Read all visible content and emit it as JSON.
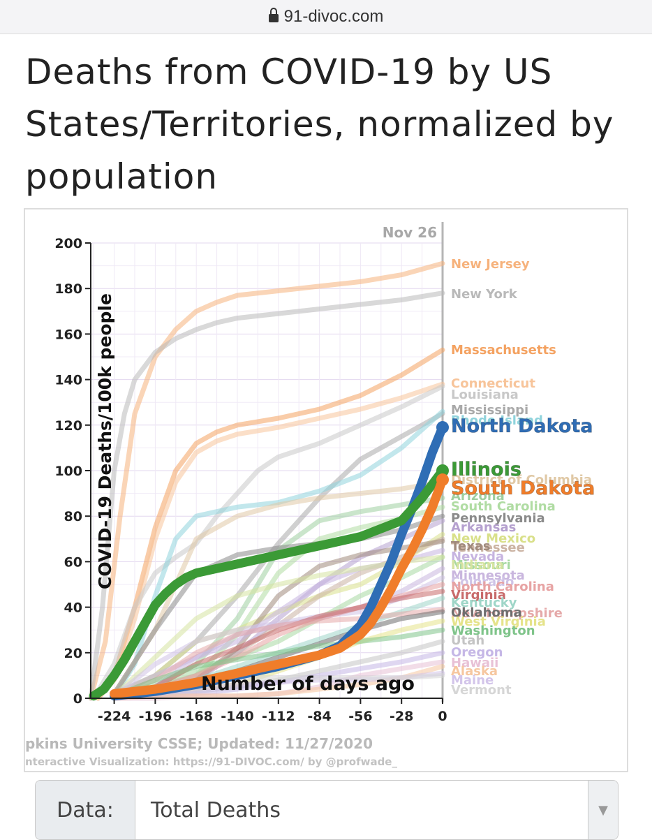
{
  "browser": {
    "url": "91-divoc.com"
  },
  "page": {
    "title": "Deaths from COVID-19 by US States/Territories, normalized by population"
  },
  "controls": {
    "data_label": "Data:",
    "data_value": "Total Deaths"
  },
  "chart_data": {
    "type": "line",
    "title": "",
    "xlabel": "Number of days ago",
    "ylabel": "COVID-19 Deaths/100k people",
    "xlim": [
      -240,
      0
    ],
    "ylim": [
      0,
      200
    ],
    "x_ticks": [
      -224,
      -196,
      -168,
      -140,
      -112,
      -84,
      -56,
      -28,
      0
    ],
    "y_ticks": [
      0,
      20,
      40,
      60,
      80,
      100,
      120,
      140,
      160,
      180,
      200
    ],
    "grid": true,
    "date_marker": "Nov 26",
    "source_line": "pkins University CSSE; Updated: 11/27/2020",
    "credit_line": "nteractive Visualization: https://91-DIVOC.com/ by @profwade_",
    "highlighted": [
      {
        "name": "North Dakota",
        "color": "#2f6db5",
        "x": [
          -224,
          -196,
          -168,
          -140,
          -112,
          -84,
          -70,
          -56,
          -49,
          -42,
          -35,
          -28,
          -21,
          -14,
          -7,
          0
        ],
        "y": [
          1,
          3,
          6,
          10,
          14,
          19,
          23,
          32,
          40,
          50,
          60,
          72,
          83,
          95,
          108,
          119
        ]
      },
      {
        "name": "Illinois",
        "color": "#3b9a36",
        "x": [
          -238,
          -231,
          -224,
          -217,
          -210,
          -203,
          -196,
          -189,
          -182,
          -175,
          -168,
          -154,
          -140,
          -112,
          -84,
          -56,
          -28,
          -14,
          0
        ],
        "y": [
          1,
          4,
          10,
          17,
          25,
          33,
          41,
          46,
          50,
          53,
          55,
          57,
          59,
          63,
          67,
          71,
          78,
          88,
          100
        ]
      },
      {
        "name": "South Dakota",
        "color": "#f07d2a",
        "x": [
          -224,
          -196,
          -168,
          -140,
          -112,
          -84,
          -70,
          -56,
          -49,
          -42,
          -35,
          -28,
          -21,
          -14,
          -7,
          0
        ],
        "y": [
          2,
          4,
          7,
          11,
          15,
          19,
          22,
          28,
          33,
          40,
          48,
          57,
          65,
          74,
          84,
          96
        ]
      }
    ],
    "background_series": [
      {
        "name": "New Jersey",
        "color": "#f6b27c",
        "x": [
          -240,
          -230,
          -220,
          -210,
          -196,
          -182,
          -168,
          -154,
          -140,
          -112,
          -84,
          -56,
          -28,
          0
        ],
        "y": [
          0,
          25,
          80,
          125,
          150,
          162,
          170,
          174,
          177,
          179,
          181,
          183,
          186,
          191
        ]
      },
      {
        "name": "New York",
        "color": "#b9b9b9",
        "x": [
          -240,
          -232,
          -224,
          -217,
          -210,
          -196,
          -182,
          -168,
          -154,
          -140,
          -112,
          -84,
          -56,
          -28,
          0
        ],
        "y": [
          0,
          40,
          100,
          125,
          140,
          152,
          158,
          162,
          165,
          167,
          169,
          171,
          173,
          175,
          178
        ]
      },
      {
        "name": "Massachusetts",
        "color": "#f4a261",
        "x": [
          -235,
          -224,
          -210,
          -196,
          -182,
          -168,
          -154,
          -140,
          -112,
          -84,
          -56,
          -28,
          0
        ],
        "y": [
          0,
          10,
          40,
          75,
          100,
          112,
          117,
          120,
          123,
          127,
          133,
          142,
          153
        ]
      },
      {
        "name": "Connecticut",
        "color": "#f7c49a",
        "x": [
          -235,
          -224,
          -210,
          -196,
          -182,
          -168,
          -154,
          -140,
          -112,
          -84,
          -56,
          -28,
          0
        ],
        "y": [
          0,
          8,
          35,
          70,
          95,
          108,
          113,
          116,
          119,
          123,
          127,
          132,
          138
        ]
      },
      {
        "name": "Louisiana",
        "color": "#c8c8c8",
        "x": [
          -238,
          -224,
          -210,
          -196,
          -182,
          -168,
          -154,
          -140,
          -126,
          -112,
          -84,
          -56,
          -28,
          0
        ],
        "y": [
          0,
          15,
          40,
          55,
          62,
          68,
          80,
          90,
          100,
          106,
          112,
          120,
          128,
          137
        ]
      },
      {
        "name": "Mississippi",
        "color": "#a9a9a9",
        "x": [
          -224,
          -196,
          -168,
          -140,
          -112,
          -84,
          -56,
          -28,
          0
        ],
        "y": [
          2,
          10,
          25,
          45,
          68,
          88,
          105,
          115,
          125
        ]
      },
      {
        "name": "Rhode Island",
        "color": "#8fd3dc",
        "x": [
          -224,
          -210,
          -196,
          -182,
          -168,
          -154,
          -140,
          -112,
          -84,
          -56,
          -28,
          0
        ],
        "y": [
          1,
          15,
          45,
          70,
          80,
          82,
          84,
          86,
          91,
          98,
          110,
          126
        ]
      },
      {
        "name": "District of Columbia",
        "color": "#e0c9a6",
        "x": [
          -224,
          -196,
          -168,
          -140,
          -112,
          -84,
          -56,
          -28,
          0
        ],
        "y": [
          2,
          30,
          70,
          80,
          85,
          88,
          90,
          92,
          95
        ]
      },
      {
        "name": "Arizona",
        "color": "#9fcfa0",
        "x": [
          -224,
          -196,
          -168,
          -140,
          -112,
          -84,
          -56,
          -28,
          0
        ],
        "y": [
          1,
          5,
          15,
          35,
          65,
          78,
          82,
          85,
          88
        ]
      },
      {
        "name": "South Carolina",
        "color": "#b0dca3",
        "x": [
          -224,
          -196,
          -168,
          -140,
          -112,
          -84,
          -56,
          -28,
          0
        ],
        "y": [
          1,
          4,
          10,
          28,
          55,
          70,
          75,
          79,
          84
        ]
      },
      {
        "name": "Pennsylvania",
        "color": "#8b8b8b",
        "x": [
          -224,
          -196,
          -168,
          -140,
          -112,
          -84,
          -56,
          -28,
          0
        ],
        "y": [
          2,
          30,
          55,
          63,
          66,
          68,
          70,
          74,
          80
        ]
      },
      {
        "name": "Arkansas",
        "color": "#b5a0cf",
        "x": [
          -224,
          -196,
          -168,
          -140,
          -112,
          -84,
          -56,
          -28,
          0
        ],
        "y": [
          1,
          3,
          8,
          20,
          35,
          50,
          62,
          70,
          78
        ]
      },
      {
        "name": "New Mexico",
        "color": "#d9e08a",
        "x": [
          -224,
          -196,
          -168,
          -140,
          -112,
          -84,
          -56,
          -28,
          0
        ],
        "y": [
          1,
          10,
          25,
          30,
          38,
          45,
          50,
          60,
          72
        ]
      },
      {
        "name": "Tennessee",
        "color": "#cbb3a3",
        "x": [
          -224,
          -196,
          -168,
          -140,
          -112,
          -84,
          -56,
          -28,
          0
        ],
        "y": [
          1,
          5,
          10,
          20,
          32,
          45,
          55,
          62,
          70
        ]
      },
      {
        "name": "Texas",
        "color": "#a08a7c",
        "x": [
          -224,
          -196,
          -168,
          -140,
          -112,
          -84,
          -56,
          -28,
          0
        ],
        "y": [
          1,
          3,
          8,
          22,
          45,
          58,
          63,
          66,
          69
        ]
      },
      {
        "name": "Nevada",
        "color": "#c7b4e0",
        "x": [
          -224,
          -196,
          -168,
          -140,
          -112,
          -84,
          -56,
          -28,
          0
        ],
        "y": [
          1,
          10,
          18,
          25,
          38,
          50,
          57,
          60,
          65
        ]
      },
      {
        "name": "Missouri",
        "color": "#a7d9a2",
        "x": [
          -224,
          -196,
          -168,
          -140,
          -112,
          -84,
          -56,
          -28,
          0
        ],
        "y": [
          1,
          6,
          12,
          18,
          25,
          35,
          45,
          53,
          62
        ]
      },
      {
        "name": "Indiana",
        "color": "#d6e3a1",
        "x": [
          -224,
          -196,
          -168,
          -140,
          -112,
          -84,
          -56,
          -28,
          0
        ],
        "y": [
          1,
          18,
          35,
          45,
          50,
          54,
          57,
          60,
          62
        ]
      },
      {
        "name": "Minnesota",
        "color": "#c9b6de",
        "x": [
          -224,
          -196,
          -168,
          -140,
          -112,
          -84,
          -56,
          -28,
          0
        ],
        "y": [
          1,
          5,
          18,
          28,
          32,
          35,
          40,
          47,
          57
        ]
      },
      {
        "name": "Colorado",
        "color": "#cfc3e6",
        "x": [
          -224,
          -196,
          -168,
          -140,
          -112,
          -84,
          -56,
          -28,
          0
        ],
        "y": [
          1,
          15,
          25,
          30,
          33,
          36,
          38,
          44,
          53
        ]
      },
      {
        "name": "North Carolina",
        "color": "#e7a3a3",
        "x": [
          -224,
          -196,
          -168,
          -140,
          -112,
          -84,
          -56,
          -28,
          0
        ],
        "y": [
          1,
          4,
          10,
          18,
          28,
          35,
          40,
          45,
          50
        ]
      },
      {
        "name": "Virginia",
        "color": "#c86a6a",
        "x": [
          -224,
          -196,
          -168,
          -140,
          -112,
          -84,
          -56,
          -28,
          0
        ],
        "y": [
          1,
          5,
          15,
          22,
          30,
          36,
          40,
          44,
          47
        ]
      },
      {
        "name": "Kentucky",
        "color": "#9fd6c8",
        "x": [
          -224,
          -196,
          -168,
          -140,
          -112,
          -84,
          -56,
          -28,
          0
        ],
        "y": [
          1,
          3,
          8,
          14,
          20,
          26,
          32,
          38,
          44
        ]
      },
      {
        "name": "New Hampshire",
        "color": "#e5a9a9",
        "x": [
          -224,
          -196,
          -168,
          -140,
          -112,
          -84,
          -56,
          -28,
          0
        ],
        "y": [
          1,
          8,
          20,
          28,
          32,
          34,
          35,
          37,
          39
        ]
      },
      {
        "name": "Oklahoma",
        "color": "#6e6e6e",
        "x": [
          -224,
          -196,
          -168,
          -140,
          -112,
          -84,
          -56,
          -28,
          0
        ],
        "y": [
          1,
          4,
          8,
          12,
          18,
          24,
          30,
          35,
          38
        ]
      },
      {
        "name": "West Virginia",
        "color": "#e5e38a",
        "x": [
          -224,
          -196,
          -168,
          -140,
          -112,
          -84,
          -56,
          -28,
          0
        ],
        "y": [
          1,
          2,
          4,
          6,
          12,
          18,
          25,
          30,
          34
        ]
      },
      {
        "name": "Washington",
        "color": "#7fc48a",
        "x": [
          -224,
          -196,
          -168,
          -140,
          -112,
          -84,
          -56,
          -28,
          0
        ],
        "y": [
          1,
          8,
          14,
          17,
          20,
          23,
          25,
          27,
          30
        ]
      },
      {
        "name": "Utah",
        "color": "#c4c4c4",
        "x": [
          -224,
          -196,
          -168,
          -140,
          -112,
          -84,
          -56,
          -28,
          0
        ],
        "y": [
          0,
          1,
          3,
          5,
          8,
          12,
          16,
          20,
          25
        ]
      },
      {
        "name": "Oregon",
        "color": "#c5b7e6",
        "x": [
          -224,
          -196,
          -168,
          -140,
          -112,
          -84,
          -56,
          -28,
          0
        ],
        "y": [
          0,
          1,
          2,
          4,
          7,
          10,
          13,
          16,
          20
        ]
      },
      {
        "name": "Hawaii",
        "color": "#e8c1d6",
        "x": [
          -224,
          -196,
          -168,
          -140,
          -112,
          -84,
          -56,
          -28,
          0
        ],
        "y": [
          0,
          0,
          1,
          1,
          2,
          5,
          10,
          13,
          16
        ]
      },
      {
        "name": "Alaska",
        "color": "#f6c7a0",
        "x": [
          -224,
          -196,
          -168,
          -140,
          -112,
          -84,
          -56,
          -28,
          0
        ],
        "y": [
          0,
          1,
          1,
          1,
          2,
          4,
          6,
          9,
          14
        ]
      },
      {
        "name": "Maine",
        "color": "#d3c5ea",
        "x": [
          -224,
          -196,
          -168,
          -140,
          -112,
          -84,
          -56,
          -28,
          0
        ],
        "y": [
          0,
          2,
          4,
          6,
          7,
          8,
          8,
          9,
          11
        ]
      },
      {
        "name": "Vermont",
        "color": "#d6d6d6",
        "x": [
          -224,
          -196,
          -168,
          -140,
          -112,
          -84,
          -56,
          -28,
          0
        ],
        "y": [
          0,
          5,
          8,
          9,
          9,
          9,
          9,
          9,
          10
        ]
      }
    ]
  }
}
